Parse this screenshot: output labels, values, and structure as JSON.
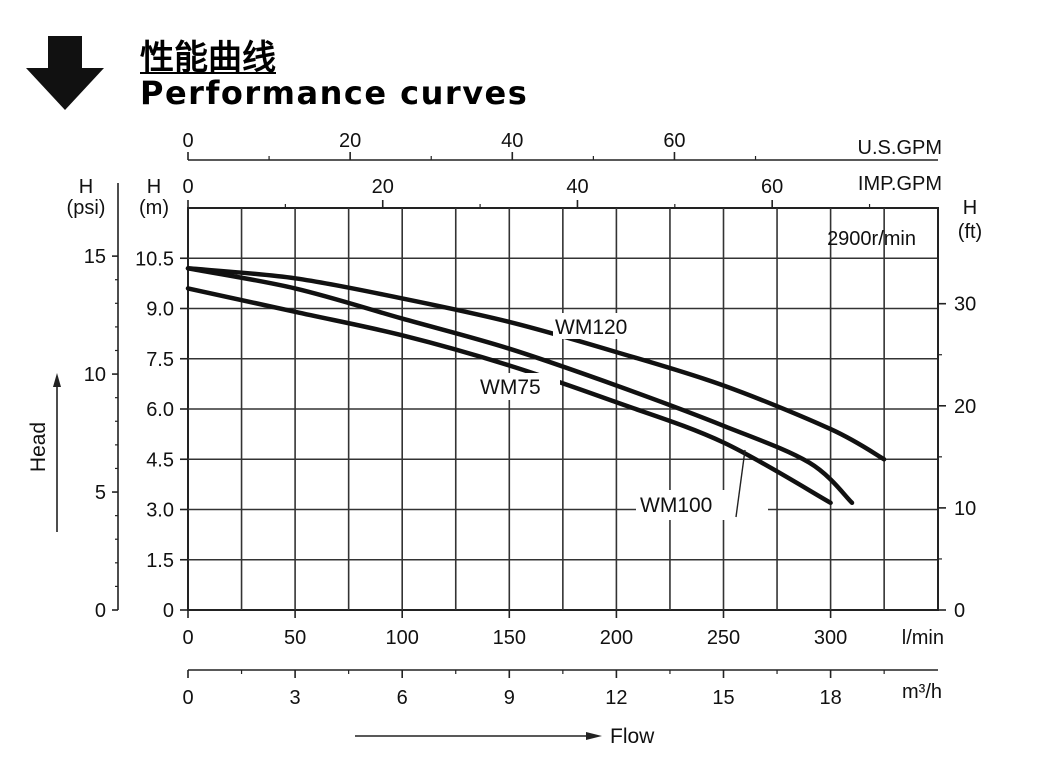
{
  "header": {
    "title_cn": "性能曲线",
    "title_en": "Performance curves",
    "icon": "arrow-down-icon"
  },
  "chart_data": {
    "type": "line",
    "speed_label": "2900r/min",
    "xlabel": "Flow",
    "ylabel": "Head",
    "grid": true,
    "x_unit": "l/min",
    "xlim": [
      0,
      350
    ],
    "x_ticks": [
      0,
      50,
      100,
      150,
      200,
      250,
      300
    ],
    "y_unit": "m",
    "y_unit_header": "H\n(m)",
    "ylim": [
      0,
      12
    ],
    "y_ticks": [
      0,
      1.5,
      3.0,
      4.5,
      6.0,
      7.5,
      9.0,
      10.5
    ],
    "y_tick_labels": [
      "0",
      "1.5",
      "3.0",
      "4.5",
      "6.0",
      "7.5",
      "9.0",
      "10.5"
    ],
    "secondary_axes": {
      "usgpm": {
        "unit": "U.S.GPM",
        "ticks": [
          0,
          20,
          40,
          60
        ],
        "factor": 0.2642
      },
      "impgpm": {
        "unit": "IMP.GPM",
        "ticks": [
          0,
          20,
          40,
          60
        ],
        "factor": 0.22
      },
      "psi": {
        "header": "H\n(psi)",
        "ticks": [
          0,
          5,
          10,
          15
        ],
        "factor": 1.42
      },
      "ft": {
        "header": "H\n(ft)",
        "ticks": [
          0,
          10,
          20,
          30
        ],
        "factor": 3.281
      },
      "m3h": {
        "unit": "m³/h",
        "ticks": [
          0,
          3,
          6,
          9,
          12,
          15,
          18
        ],
        "factor": 0.06
      }
    },
    "series": [
      {
        "name": "WM75",
        "x": [
          0,
          50,
          100,
          150,
          200,
          250,
          300
        ],
        "y": [
          9.6,
          8.9,
          8.2,
          7.3,
          6.2,
          5.0,
          3.2
        ]
      },
      {
        "name": "WM100",
        "x": [
          0,
          50,
          100,
          150,
          200,
          250,
          290,
          310
        ],
        "y": [
          10.2,
          9.6,
          8.7,
          7.8,
          6.7,
          5.5,
          4.4,
          3.2
        ]
      },
      {
        "name": "WM120",
        "x": [
          0,
          50,
          100,
          150,
          200,
          250,
          300,
          325
        ],
        "y": [
          10.2,
          9.9,
          9.3,
          8.6,
          7.7,
          6.7,
          5.4,
          4.5
        ]
      }
    ]
  }
}
